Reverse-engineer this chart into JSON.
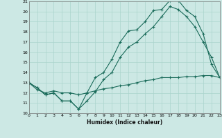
{
  "title": "",
  "xlabel": "Humidex (Indice chaleur)",
  "bg_color": "#cce8e4",
  "grid_color": "#aad4cc",
  "line_color": "#1a6b5a",
  "xmin": 0,
  "xmax": 23,
  "ymin": 10,
  "ymax": 21,
  "line1_x": [
    0,
    1,
    2,
    3,
    4,
    5,
    6,
    7,
    8,
    9,
    10,
    11,
    12,
    13,
    14,
    15,
    16,
    17,
    18,
    19,
    20,
    21,
    22,
    23
  ],
  "line1_y": [
    13.0,
    12.5,
    11.8,
    12.0,
    11.2,
    11.2,
    10.4,
    12.0,
    13.5,
    14.0,
    15.3,
    17.0,
    18.1,
    18.2,
    19.0,
    20.1,
    20.2,
    21.1,
    21.1,
    20.1,
    19.5,
    17.8,
    14.8,
    13.5
  ],
  "line2_x": [
    0,
    1,
    2,
    3,
    4,
    5,
    6,
    7,
    8,
    9,
    10,
    11,
    12,
    13,
    14,
    15,
    16,
    17,
    18,
    19,
    20,
    21,
    22,
    23
  ],
  "line2_y": [
    13.0,
    12.5,
    11.8,
    12.0,
    11.2,
    11.2,
    10.4,
    11.2,
    12.1,
    13.3,
    14.0,
    15.5,
    16.5,
    17.0,
    17.8,
    18.5,
    19.5,
    20.5,
    20.2,
    19.5,
    18.5,
    17.0,
    15.5,
    13.5
  ],
  "line3_x": [
    0,
    1,
    2,
    3,
    4,
    5,
    6,
    7,
    8,
    9,
    10,
    11,
    12,
    13,
    14,
    15,
    16,
    17,
    18,
    19,
    20,
    21,
    22,
    23
  ],
  "line3_y": [
    13.0,
    12.3,
    12.0,
    12.2,
    12.0,
    12.0,
    11.8,
    12.0,
    12.2,
    12.4,
    12.5,
    12.7,
    12.8,
    13.0,
    13.2,
    13.3,
    13.5,
    13.5,
    13.5,
    13.6,
    13.6,
    13.7,
    13.7,
    13.5
  ]
}
